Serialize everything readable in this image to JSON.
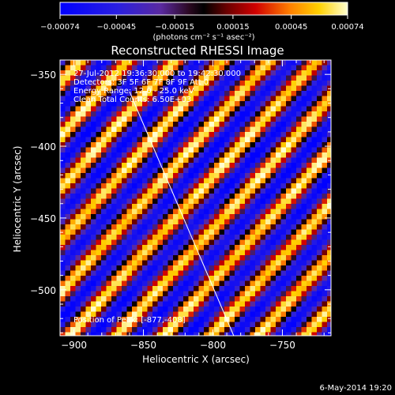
{
  "chart_data": {
    "type": "heatmap",
    "title": "Reconstructed RHESSI Image",
    "xlabel": "Heliocentric X (arcsec)",
    "ylabel": "Heliocentric Y (arcsec)",
    "xlim": [
      -910,
      -715
    ],
    "ylim": [
      -532,
      -340
    ],
    "x_ticks": [
      {
        "value": -900,
        "label": "−900"
      },
      {
        "value": -850,
        "label": "−850"
      },
      {
        "value": -800,
        "label": "−800"
      },
      {
        "value": -750,
        "label": "−750"
      }
    ],
    "y_ticks": [
      {
        "value": -350,
        "label": "−350"
      },
      {
        "value": -400,
        "label": "−400"
      },
      {
        "value": -450,
        "label": "−450"
      },
      {
        "value": -500,
        "label": "−500"
      }
    ],
    "colorbar": {
      "range": [
        -0.00074,
        0.00074
      ],
      "ticks": [
        {
          "value": -0.00074,
          "label": "−0.00074"
        },
        {
          "value": -0.00045,
          "label": "−0.00045"
        },
        {
          "value": -0.00015,
          "label": "−0.00015"
        },
        {
          "value": 0.00015,
          "label": "0.00015"
        },
        {
          "value": 0.00045,
          "label": "0.00045"
        },
        {
          "value": 0.00074,
          "label": "0.00074"
        }
      ],
      "unit_label": "(photons cm⁻² s⁻¹ asec⁻²)"
    },
    "annotations": [
      "27-Jul-2012 19:36:30.000 to 19:42:30.000",
      "Detectors: 3F 5F 6F 7F 8F 9F Att 0",
      "Energy Range: 12.0 - 25.0 keV",
      "Clean    Total Counts: 6.50E+03",
      "Position of Peak: [-877,-408]"
    ],
    "limb_line": {
      "x": [
        -860,
        -785
      ],
      "y": [
        -362,
        -532
      ]
    },
    "fringe_pattern": {
      "orientation": "diagonal, upper-left to lower-right",
      "band_spacing_x_arcsec": 34
    }
  },
  "footer": {
    "timestamp": "6-May-2014 19:20"
  }
}
